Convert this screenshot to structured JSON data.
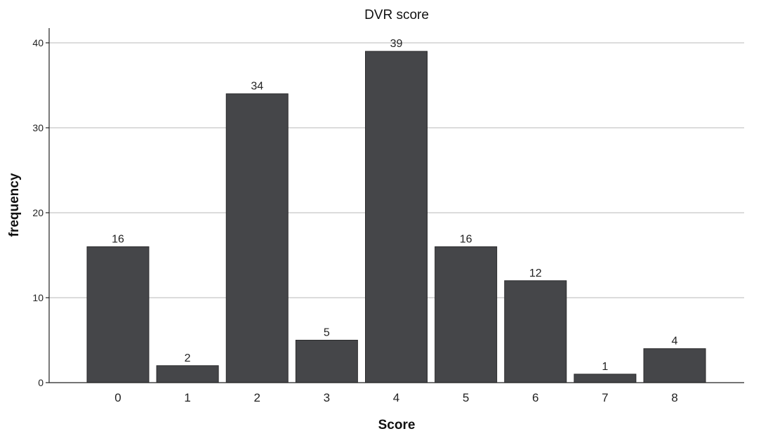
{
  "chart_data": {
    "type": "bar",
    "title": "DVR score",
    "xlabel": "Score",
    "ylabel": "frequency",
    "categories": [
      "0",
      "1",
      "2",
      "3",
      "4",
      "5",
      "6",
      "7",
      "8"
    ],
    "values": [
      16,
      2,
      34,
      5,
      39,
      16,
      12,
      1,
      4
    ],
    "ylim": [
      0,
      40
    ],
    "yticks": [
      "0",
      "10",
      "20",
      "30",
      "40"
    ],
    "grid": true,
    "legend": "none",
    "colors": {
      "bar": "#454649",
      "grid": "#c8c8c8"
    }
  }
}
